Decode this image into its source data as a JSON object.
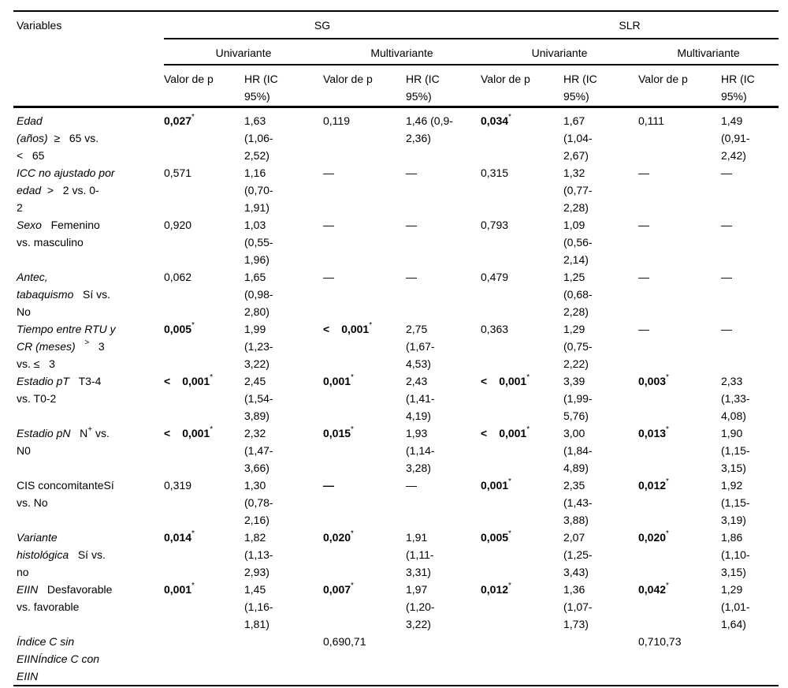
{
  "colors": {
    "background": "#ffffff",
    "text": "#000000",
    "rule": "#000000"
  },
  "header": {
    "variables": "Variables",
    "group_sg": "SG",
    "group_slr": "SLR",
    "sub_uni": "Univariante",
    "sub_multi": "Multivariante",
    "metric_p": "Valor de p",
    "metric_hr": "HR (IC 95%)"
  },
  "table": {
    "rows": [
      {
        "label": [
          [
            {
              "t": "Edad",
              "i": true
            }
          ],
          [
            {
              "t": "(años)",
              "i": true
            },
            {
              "t": "  ≥   65 vs."
            }
          ],
          [
            {
              "t": "<   65"
            }
          ]
        ],
        "cells": [
          {
            "p": {
              "v": "0,027",
              "star": true,
              "b": true
            },
            "hr": "1,63 (1,06-2,52)"
          },
          {
            "p": {
              "v": "0,119"
            },
            "hr": "1,46 (0,9-2,36)"
          },
          {
            "p": {
              "v": "0,034",
              "star": true,
              "b": true
            },
            "hr": "1,67 (1,04-2,67)"
          },
          {
            "p": {
              "v": "0,111"
            },
            "hr": "1,49 (0,91-2,42)"
          }
        ]
      },
      {
        "label": [
          [
            {
              "t": "ICC no ajustado por",
              "i": true
            }
          ],
          [
            {
              "t": "edad",
              "i": true
            },
            {
              "t": "  >   2 vs. 0-"
            }
          ],
          [
            {
              "t": "2"
            }
          ]
        ],
        "cells": [
          {
            "p": {
              "v": "0,571"
            },
            "hr": "1,16 (0,70-1,91)"
          },
          {
            "p": {
              "v": "—"
            },
            "hr": "—"
          },
          {
            "p": {
              "v": "0,315"
            },
            "hr": "1,32 (0,77-2,28)"
          },
          {
            "p": {
              "v": "—"
            },
            "hr": "—"
          }
        ]
      },
      {
        "label": [
          [
            {
              "t": "Sexo",
              "i": true
            },
            {
              "t": "   Femenino"
            }
          ],
          [
            {
              "t": "vs. masculino"
            }
          ]
        ],
        "cells": [
          {
            "p": {
              "v": "0,920"
            },
            "hr": "1,03 (0,55-1,96)"
          },
          {
            "p": {
              "v": "—"
            },
            "hr": "—"
          },
          {
            "p": {
              "v": "0,793"
            },
            "hr": "1,09 (0,56-2,14)"
          },
          {
            "p": {
              "v": "—"
            },
            "hr": "—"
          }
        ]
      },
      {
        "label": [
          [
            {
              "t": "Antec,",
              "i": true
            }
          ],
          [
            {
              "t": "tabaquismo",
              "i": true
            },
            {
              "t": "   Sí vs."
            }
          ],
          [
            {
              "t": "No"
            }
          ]
        ],
        "cells": [
          {
            "p": {
              "v": "0,062"
            },
            "hr": "1,65 (0,98-2,80)"
          },
          {
            "p": {
              "v": "—"
            },
            "hr": "—"
          },
          {
            "p": {
              "v": "0,479"
            },
            "hr": "1,25 (0,68-2,28)"
          },
          {
            "p": {
              "v": "—"
            },
            "hr": "—"
          }
        ]
      },
      {
        "label": [
          [
            {
              "t": "Tiempo entre RTU y",
              "i": true
            }
          ],
          [
            {
              "t": "CR (meses)",
              "i": true
            },
            {
              "t": "   "
            },
            {
              "t": ">",
              "sup": true
            },
            {
              "t": "   3"
            }
          ],
          [
            {
              "t": "vs. ≤   3"
            }
          ]
        ],
        "cells": [
          {
            "p": {
              "v": "0,005",
              "star": true,
              "b": true
            },
            "hr": "1,99 (1,23-3,22)"
          },
          {
            "p": {
              "lt": true,
              "v": "0,001",
              "star": true,
              "b": true
            },
            "hr": "2,75 (1,67-4,53)"
          },
          {
            "p": {
              "v": "0,363"
            },
            "hr": "1,29 (0,75-2,22)"
          },
          {
            "p": {
              "v": "—"
            },
            "hr": "—"
          }
        ]
      },
      {
        "label": [
          [
            {
              "t": "Estadio pT",
              "i": true
            },
            {
              "t": "   T3-4"
            }
          ],
          [
            {
              "t": "vs. T0-2"
            }
          ]
        ],
        "cells": [
          {
            "p": {
              "lt": true,
              "v": "0,001",
              "star": true,
              "b": true
            },
            "hr": "2,45 (1,54-3,89)"
          },
          {
            "p": {
              "v": "0,001",
              "star": true,
              "b": true
            },
            "hr": "2,43 (1,41-4,19)"
          },
          {
            "p": {
              "lt": true,
              "v": "0,001",
              "star": true,
              "b": true
            },
            "hr": "3,39 (1,99-5,76)"
          },
          {
            "p": {
              "v": "0,003",
              "star": true,
              "b": true
            },
            "hr": "2,33 (1,33-4,08)"
          }
        ]
      },
      {
        "label": [
          [
            {
              "t": "Estadio pN",
              "i": true
            },
            {
              "t": "   N"
            },
            {
              "t": "+",
              "sup": true
            },
            {
              "t": " vs."
            }
          ],
          [
            {
              "t": "N0"
            }
          ]
        ],
        "cells": [
          {
            "p": {
              "lt": true,
              "v": "0,001",
              "star": true,
              "b": true
            },
            "hr": "2,32 (1,47-3,66)"
          },
          {
            "p": {
              "v": "0,015",
              "star": true,
              "b": true
            },
            "hr": "1,93 (1,14-3,28)"
          },
          {
            "p": {
              "lt": true,
              "v": "0,001",
              "star": true,
              "b": true
            },
            "hr": "3,00 (1,84-4,89)"
          },
          {
            "p": {
              "v": "0,013",
              "star": true,
              "b": true
            },
            "hr": "1,90 (1,15-3,15)"
          }
        ]
      },
      {
        "label": [
          [
            {
              "t": "CIS concomitanteSí"
            }
          ],
          [
            {
              "t": "vs. No"
            }
          ]
        ],
        "cells": [
          {
            "p": {
              "v": "0,319"
            },
            "hr": "1,30 (0,78-2,16)"
          },
          {
            "p": {
              "v": "—",
              "b": true
            },
            "hr": "—"
          },
          {
            "p": {
              "v": "0,001",
              "star": true,
              "b": true
            },
            "hr": "2,35 (1,43-3,88)"
          },
          {
            "p": {
              "v": "0,012",
              "star": true,
              "b": true
            },
            "hr": "1,92 (1,15-3,19)"
          }
        ]
      },
      {
        "label": [
          [
            {
              "t": "Variante",
              "i": true
            }
          ],
          [
            {
              "t": "histológica",
              "i": true
            },
            {
              "t": "   Sí vs."
            }
          ],
          [
            {
              "t": "no"
            }
          ]
        ],
        "cells": [
          {
            "p": {
              "v": "0,014",
              "star": true,
              "b": true
            },
            "hr": "1,82 (1,13-2,93)"
          },
          {
            "p": {
              "v": "0,020",
              "star": true,
              "b": true
            },
            "hr": "1,91 (1,11-3,31)"
          },
          {
            "p": {
              "v": "0,005",
              "star": true,
              "b": true
            },
            "hr": "2,07 (1,25-3,43)"
          },
          {
            "p": {
              "v": "0,020",
              "star": true,
              "b": true
            },
            "hr": "1,86 (1,10-3,15)"
          }
        ]
      },
      {
        "label": [
          [
            {
              "t": "EIIN",
              "i": true
            },
            {
              "t": "   Desfavorable"
            }
          ],
          [
            {
              "t": "vs. favorable"
            }
          ]
        ],
        "cells": [
          {
            "p": {
              "v": "0,001",
              "star": true,
              "b": true
            },
            "hr": "1,45 (1,16-1,81)"
          },
          {
            "p": {
              "v": "0,007",
              "star": true,
              "b": true
            },
            "hr": "1,97 (1,20-3,22)"
          },
          {
            "p": {
              "v": "0,012",
              "star": true,
              "b": true
            },
            "hr": "1,36 (1,07-1,73)"
          },
          {
            "p": {
              "v": "0,042",
              "star": true,
              "b": true
            },
            "hr": "1,29 (1,01-1,64)"
          }
        ]
      },
      {
        "label": [
          [
            {
              "t": "Índice C sin",
              "i": true
            }
          ],
          [
            {
              "t": "EIINÍndice C con",
              "i": true
            }
          ],
          [
            {
              "t": "EIIN",
              "i": true
            }
          ]
        ],
        "cells": [
          {
            "p": null,
            "hr": null
          },
          {
            "p": {
              "v": "0,690,71"
            },
            "hr": null
          },
          {
            "p": null,
            "hr": null
          },
          {
            "p": {
              "v": "0,710,73"
            },
            "hr": null
          }
        ]
      }
    ]
  }
}
